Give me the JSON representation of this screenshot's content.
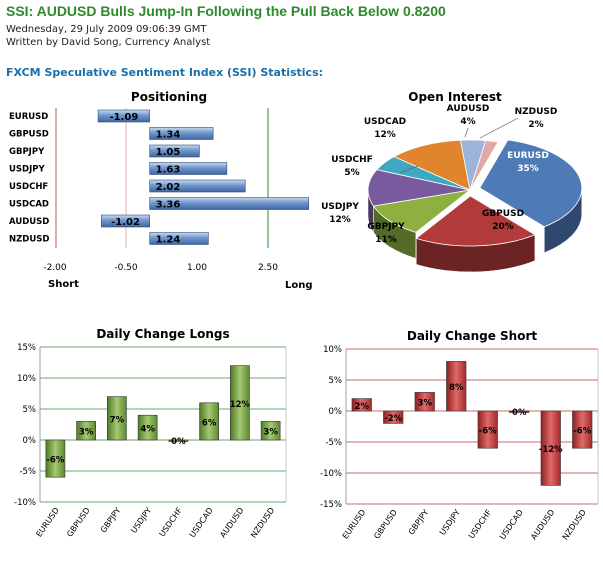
{
  "header": {
    "headline": "SSI: AUDUSD Bulls Jump-In Following the Pull Back Below 0.8200",
    "date": "Wednesday, 29 July 2009 09:06:39 GMT",
    "byline": "Written by David Song, Currency Analyst",
    "section_title": "FXCM Speculative Sentiment Index (SSI) Statistics:"
  },
  "chart_data": [
    {
      "type": "bar",
      "orientation": "horizontal",
      "title": "Positioning",
      "categories": [
        "EURUSD",
        "GBPUSD",
        "GBPJPY",
        "USDJPY",
        "USDCHF",
        "USDCAD",
        "AUDUSD",
        "NZDUSD"
      ],
      "values": [
        -1.09,
        1.34,
        1.05,
        1.63,
        2.02,
        3.36,
        -1.02,
        1.24
      ],
      "value_labels": [
        "-1.09",
        "1.34",
        "1.05",
        "1.63",
        "2.02",
        "3.36",
        "-1.02",
        "1.24"
      ],
      "ticks": [
        "-2.00",
        "-0.50",
        "1.00",
        "2.50"
      ],
      "axis_left_label": "Short",
      "axis_right_label": "Long",
      "colors": {
        "bar": "#5d86c0",
        "short_line": "#c0504d",
        "long_line": "#2e8b2e"
      }
    },
    {
      "type": "pie",
      "title": "Open Interest",
      "slices": [
        {
          "label": "EURUSD",
          "value": 35,
          "pct": "35%",
          "color": "#4f7ab8"
        },
        {
          "label": "GBPUSD",
          "value": 20,
          "pct": "20%",
          "color": "#b33a3a"
        },
        {
          "label": "GBPJPY",
          "value": 11,
          "pct": "11%",
          "color": "#8db040"
        },
        {
          "label": "USDJPY",
          "value": 12,
          "pct": "12%",
          "color": "#7a5a9e"
        },
        {
          "label": "USDCHF",
          "value": 5,
          "pct": "5%",
          "color": "#3ea7c2"
        },
        {
          "label": "USDCAD",
          "value": 12,
          "pct": "12%",
          "color": "#e0852e"
        },
        {
          "label": "AUDUSD",
          "value": 4,
          "pct": "4%",
          "color": "#9cb4d8"
        },
        {
          "label": "NZDUSD",
          "value": 2,
          "pct": "2%",
          "color": "#e0a8a8"
        }
      ]
    },
    {
      "type": "bar",
      "title": "Daily Change Longs",
      "categories": [
        "EURUSD",
        "GBPUSD",
        "GBPJPY",
        "USDJPY",
        "USDCHF",
        "USDCAD",
        "AUDUSD",
        "NZDUSD"
      ],
      "values": [
        -6,
        3,
        7,
        4,
        0,
        6,
        12,
        3
      ],
      "value_labels": [
        "-6%",
        "3%",
        "7%",
        "4%",
        "0%",
        "6%",
        "12%",
        "3%"
      ],
      "y_ticks": [
        "15%",
        "10%",
        "5%",
        "0%",
        "-5%",
        "-10%"
      ],
      "ylim": [
        -10,
        15
      ],
      "colors": {
        "bar": "#6e9a3c",
        "grid": "#3a8a3a"
      }
    },
    {
      "type": "bar",
      "title": "Daily Change Short",
      "categories": [
        "EURUSD",
        "GBPUSD",
        "GBPJPY",
        "USDJPY",
        "USDCHF",
        "USDCAD",
        "AUDUSD",
        "NZDUSD"
      ],
      "values": [
        2,
        -2,
        3,
        8,
        -6,
        0,
        -12,
        -6
      ],
      "value_labels": [
        "2%",
        "-2%",
        "3%",
        "8%",
        "-6%",
        "0%",
        "-12%",
        "-6%"
      ],
      "y_ticks": [
        "10%",
        "5%",
        "0%",
        "-5%",
        "-10%",
        "-15%"
      ],
      "ylim": [
        -15,
        10
      ],
      "colors": {
        "bar": "#c03a3a",
        "grid": "#c03a3a"
      }
    }
  ]
}
